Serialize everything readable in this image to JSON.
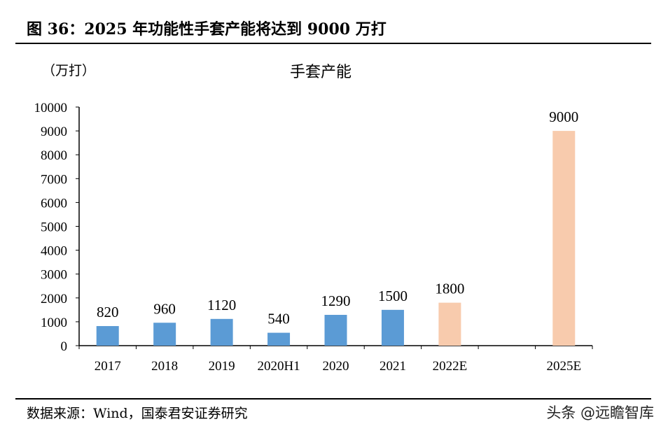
{
  "figure_title": "图 36：2025 年功能性手套产能将达到 9000 万打",
  "source": "数据来源：Wind，国泰君安证券研究",
  "watermark": "头条 @远瞻智库",
  "chart_data": {
    "type": "bar",
    "title": "手套产能",
    "unit_label": "（万打）",
    "categories": [
      "2017",
      "2018",
      "2019",
      "2020H1",
      "2020",
      "2021",
      "2022E",
      "",
      "2025E"
    ],
    "values": [
      820,
      960,
      1120,
      540,
      1290,
      1500,
      1800,
      null,
      9000
    ],
    "estimate": [
      false,
      false,
      false,
      false,
      false,
      false,
      true,
      false,
      true
    ],
    "ylim": [
      0,
      10000
    ],
    "yticks": [
      0,
      1000,
      2000,
      3000,
      4000,
      5000,
      6000,
      7000,
      8000,
      9000,
      10000
    ],
    "grid": false,
    "data_labels": true,
    "colors": {
      "actual": "#5B9BD5",
      "estimate": "#F8CBAD"
    }
  }
}
